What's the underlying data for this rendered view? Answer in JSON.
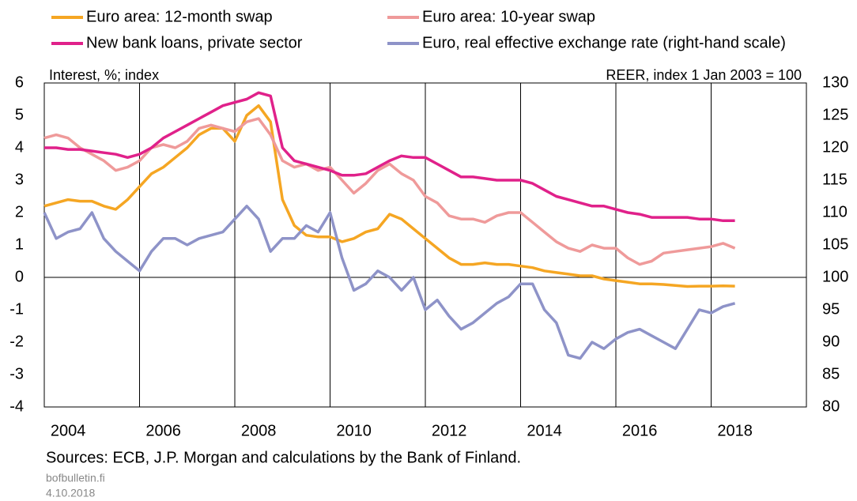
{
  "chart_data": {
    "type": "line",
    "left_label": "Interest, %; index",
    "right_label": "REER, index 1 Jan 2003 = 100",
    "source": "Sources: ECB, J.P. Morgan and calculations by the Bank of Finland.",
    "site": "bofbulletin.fi",
    "date": "4.10.2018",
    "x": [
      2004,
      2004.25,
      2004.5,
      2004.75,
      2005,
      2005.25,
      2005.5,
      2005.75,
      2006,
      2006.25,
      2006.5,
      2006.75,
      2007,
      2007.25,
      2007.5,
      2007.75,
      2008,
      2008.25,
      2008.5,
      2008.75,
      2009,
      2009.25,
      2009.5,
      2009.75,
      2010,
      2010.25,
      2010.5,
      2010.75,
      2011,
      2011.25,
      2011.5,
      2011.75,
      2012,
      2012.25,
      2012.5,
      2012.75,
      2013,
      2013.25,
      2013.5,
      2013.75,
      2014,
      2014.25,
      2014.5,
      2014.75,
      2015,
      2015.25,
      2015.5,
      2015.75,
      2016,
      2016.25,
      2016.5,
      2016.75,
      2017,
      2017.25,
      2017.5,
      2017.75,
      2018,
      2018.25,
      2018.5
    ],
    "series": [
      {
        "name": "Euro area: 12-month swap",
        "color": "#f5a623",
        "values": [
          2.2,
          2.3,
          2.4,
          2.35,
          2.35,
          2.2,
          2.1,
          2.4,
          2.8,
          3.2,
          3.4,
          3.7,
          4.0,
          4.4,
          4.6,
          4.6,
          4.2,
          5.0,
          5.3,
          4.8,
          2.4,
          1.6,
          1.3,
          1.25,
          1.25,
          1.1,
          1.2,
          1.4,
          1.5,
          1.95,
          1.8,
          1.5,
          1.2,
          0.9,
          0.6,
          0.4,
          0.4,
          0.45,
          0.4,
          0.4,
          0.35,
          0.3,
          0.2,
          0.15,
          0.1,
          0.05,
          0.05,
          -0.05,
          -0.1,
          -0.15,
          -0.2,
          -0.2,
          -0.22,
          -0.25,
          -0.28,
          -0.27,
          -0.27,
          -0.26,
          -0.27
        ]
      },
      {
        "name": "Euro area: 10-year swap",
        "color": "#ef9a9a",
        "values": [
          4.3,
          4.4,
          4.3,
          4.0,
          3.8,
          3.6,
          3.3,
          3.4,
          3.6,
          4.0,
          4.1,
          4.0,
          4.2,
          4.6,
          4.7,
          4.6,
          4.5,
          4.8,
          4.9,
          4.4,
          3.6,
          3.4,
          3.5,
          3.3,
          3.4,
          3.0,
          2.6,
          2.9,
          3.3,
          3.5,
          3.2,
          3.0,
          2.5,
          2.3,
          1.9,
          1.8,
          1.8,
          1.7,
          1.9,
          2.0,
          2.0,
          1.7,
          1.4,
          1.1,
          0.9,
          0.8,
          1.0,
          0.9,
          0.9,
          0.6,
          0.4,
          0.5,
          0.75,
          0.8,
          0.85,
          0.9,
          0.95,
          1.05,
          0.9
        ]
      },
      {
        "name": "New bank loans, private sector",
        "color": "#e0218a",
        "values": [
          4.0,
          4.0,
          3.95,
          3.95,
          3.9,
          3.85,
          3.8,
          3.7,
          3.8,
          4.0,
          4.3,
          4.5,
          4.7,
          4.9,
          5.1,
          5.3,
          5.4,
          5.5,
          5.7,
          5.6,
          4.0,
          3.6,
          3.5,
          3.4,
          3.3,
          3.15,
          3.15,
          3.2,
          3.4,
          3.6,
          3.75,
          3.7,
          3.7,
          3.5,
          3.3,
          3.1,
          3.1,
          3.05,
          3.0,
          3.0,
          3.0,
          2.9,
          2.7,
          2.5,
          2.4,
          2.3,
          2.2,
          2.2,
          2.1,
          2.0,
          1.95,
          1.85,
          1.85,
          1.85,
          1.85,
          1.8,
          1.8,
          1.75,
          1.75
        ]
      },
      {
        "name": "Euro, real effective exchange rate (right-hand scale)",
        "color": "#8e93c8",
        "axis": "y2",
        "values": [
          110,
          106,
          107,
          107.5,
          110,
          106,
          104,
          102.5,
          101,
          104,
          106,
          106,
          105,
          106,
          106.5,
          107,
          109,
          111,
          109,
          104,
          106,
          106,
          108,
          107,
          110,
          103,
          98,
          99,
          101,
          100,
          98,
          100,
          95,
          96.5,
          94,
          92,
          93,
          94.5,
          96,
          97,
          99,
          99,
          95,
          93,
          88,
          87.5,
          90,
          89,
          90.5,
          91.5,
          92,
          91,
          90,
          89,
          92,
          95,
          94.5,
          95.5,
          96
        ]
      }
    ],
    "xlim": [
      2004,
      2020
    ],
    "xticks": [
      {
        "value": 2004.5,
        "label": "2004"
      },
      {
        "value": 2006.5,
        "label": "2006"
      },
      {
        "value": 2008.5,
        "label": "2008"
      },
      {
        "value": 2010.5,
        "label": "2010"
      },
      {
        "value": 2012.5,
        "label": "2012"
      },
      {
        "value": 2014.5,
        "label": "2014"
      },
      {
        "value": 2016.5,
        "label": "2016"
      },
      {
        "value": 2018.5,
        "label": "2018"
      }
    ],
    "xgrid": [
      2006,
      2008,
      2010,
      2012,
      2014,
      2016,
      2018
    ],
    "ylim": [
      -4,
      6
    ],
    "yticks": [
      -4,
      -3,
      -2,
      -1,
      0,
      1,
      2,
      3,
      4,
      5,
      6
    ],
    "y2lim": [
      80,
      130
    ],
    "y2ticks": [
      80,
      85,
      90,
      95,
      100,
      105,
      110,
      115,
      120,
      125,
      130
    ]
  }
}
